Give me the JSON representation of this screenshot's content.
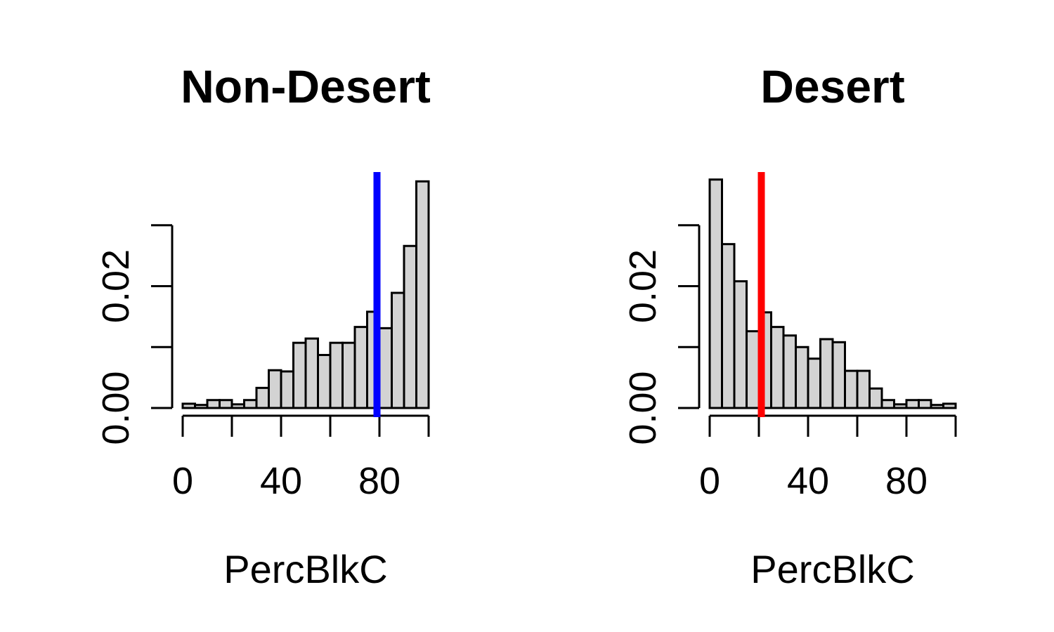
{
  "figure": {
    "background": "#FFFFFF",
    "description": "Two R-style density histograms side by side"
  },
  "chart_data": [
    {
      "type": "histogram",
      "title": "Non-Desert",
      "xlabel": "PercBlkC",
      "bin_start": 0,
      "bin_width": 5,
      "densities": [
        0.0007,
        0.0005,
        0.0013,
        0.0013,
        0.0006,
        0.0013,
        0.0033,
        0.0062,
        0.006,
        0.0107,
        0.0114,
        0.0087,
        0.0107,
        0.0107,
        0.0133,
        0.0158,
        0.0131,
        0.0189,
        0.0266,
        0.0372
      ],
      "x_ticks": [
        0,
        20,
        40,
        60,
        80,
        100
      ],
      "x_tick_labels": [
        "0",
        "",
        "40",
        "",
        "80",
        ""
      ],
      "y_ticks": [
        0,
        0.01,
        0.02,
        0.03
      ],
      "y_tick_labels": [
        "0.00",
        "",
        "0.02",
        ""
      ],
      "xlim": [
        0,
        100
      ],
      "ylim": [
        0,
        0.0386
      ],
      "grid": false,
      "vline": {
        "x": 79,
        "color": "#0000FF"
      },
      "bar_fill": "#D3D3D3",
      "bar_border": "#000000"
    },
    {
      "type": "histogram",
      "title": "Desert",
      "xlabel": "PercBlkC",
      "bin_start": 0,
      "bin_width": 5,
      "densities": [
        0.0375,
        0.0269,
        0.0208,
        0.0126,
        0.0157,
        0.0133,
        0.0119,
        0.01,
        0.0081,
        0.0113,
        0.0108,
        0.0061,
        0.0061,
        0.0032,
        0.0013,
        0.0006,
        0.0013,
        0.0013,
        0.0005,
        0.0007
      ],
      "x_ticks": [
        0,
        20,
        40,
        60,
        80,
        100
      ],
      "x_tick_labels": [
        "0",
        "",
        "40",
        "",
        "80",
        ""
      ],
      "y_ticks": [
        0,
        0.01,
        0.02,
        0.03
      ],
      "y_tick_labels": [
        "0.00",
        "",
        "0.02",
        ""
      ],
      "xlim": [
        0,
        100
      ],
      "ylim": [
        0,
        0.0386
      ],
      "grid": false,
      "vline": {
        "x": 21,
        "color": "#FF0000"
      },
      "bar_fill": "#D3D3D3",
      "bar_border": "#000000"
    }
  ]
}
